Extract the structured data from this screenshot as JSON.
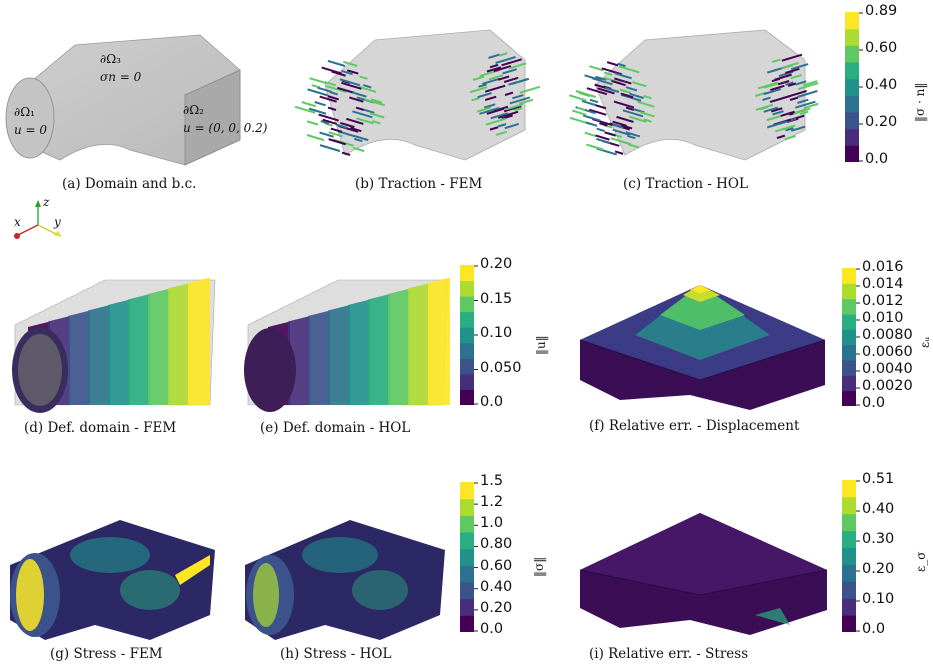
{
  "captions": {
    "a": "(a) Domain and b.c.",
    "b": "(b) Traction - FEM",
    "c": "(c) Traction - HOL",
    "d": "(d) Def. domain - FEM",
    "e": "(e) Def. domain - HOL",
    "f": "(f) Relative err. - Displacement",
    "g": "(g) Stress - FEM",
    "h": "(h) Stress - HOL",
    "i": "(i) Relative err. - Stress"
  },
  "domain_labels": {
    "omega3": "∂Ω₃",
    "omega3_cond": "σn = 0",
    "omega1": "∂Ω₁",
    "omega1_cond": "u = 0",
    "omega2": "∂Ω₂",
    "omega2_cond": "u = (0, 0, 0.2)"
  },
  "axes_triad": {
    "x": "x",
    "y": "y",
    "z": "z"
  },
  "colorbars": {
    "traction": {
      "label": "‖σ · n‖",
      "ticks": [
        "0.89",
        "0.60",
        "0.40",
        "0.20",
        "0.0"
      ]
    },
    "displacement": {
      "label": "‖u‖",
      "ticks": [
        "0.20",
        "0.15",
        "0.10",
        "0.050",
        "0.0"
      ]
    },
    "err_u": {
      "label": "εᵤ",
      "ticks": [
        "0.016",
        "0.014",
        "0.012",
        "0.010",
        "0.0080",
        "0.0060",
        "0.0040",
        "0.0020",
        "0.0"
      ]
    },
    "stress": {
      "label": "‖σ‖",
      "ticks": [
        "1.5",
        "1.2",
        "1.0",
        "0.80",
        "0.60",
        "0.40",
        "0.20",
        "0.0"
      ]
    },
    "err_s": {
      "label": "ε_σ",
      "ticks": [
        "0.51",
        "0.40",
        "0.30",
        "0.20",
        "0.10",
        "0.0"
      ]
    }
  },
  "colors": {
    "viridis": [
      "#440154",
      "#472d7b",
      "#3b528b",
      "#2c728e",
      "#21918c",
      "#28ae80",
      "#5ec962",
      "#addc30",
      "#fde725"
    ],
    "mesh": "#d0d0d0"
  }
}
